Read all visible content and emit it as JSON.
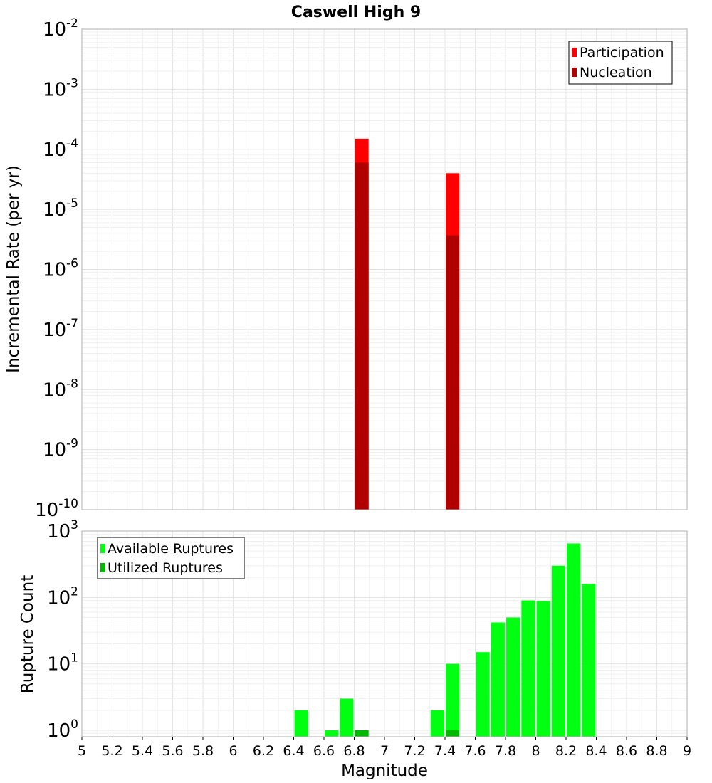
{
  "chart_data": [
    {
      "type": "bar",
      "title": "Caswell High 9",
      "xlabel": "",
      "ylabel": "Incremental Rate (per yr)",
      "y_scale": "log",
      "ylim": [
        1e-10,
        0.01
      ],
      "y_tick_exponents": [
        "-10",
        "-9",
        "-8",
        "-7",
        "-6",
        "-5",
        "-4",
        "-3",
        "-2"
      ],
      "y_tick_base": "10",
      "xlim": [
        5,
        9
      ],
      "bar_width": 0.09,
      "grid": true,
      "legend_position": "top-right",
      "series": [
        {
          "name": "Participation",
          "color": "#ff0000",
          "points": [
            {
              "x": 6.85,
              "y": 0.00015
            },
            {
              "x": 7.45,
              "y": 4e-05
            }
          ]
        },
        {
          "name": "Nucleation",
          "color": "#b00000",
          "points": [
            {
              "x": 6.85,
              "y": 6e-05
            },
            {
              "x": 7.45,
              "y": 3.7e-06
            }
          ]
        }
      ]
    },
    {
      "type": "bar",
      "title": "",
      "xlabel": "Magnitude",
      "ylabel": "Rupture Count",
      "y_scale": "log",
      "ylim": [
        0.8,
        1000
      ],
      "y_tick_exponents": [
        "0",
        "1",
        "2",
        "3"
      ],
      "y_tick_base": "10",
      "xlim": [
        5,
        9
      ],
      "x_ticks": [
        "5",
        "5.2",
        "5.4",
        "5.6",
        "5.8",
        "6",
        "6.2",
        "6.4",
        "6.6",
        "6.8",
        "7",
        "7.2",
        "7.4",
        "7.6",
        "7.8",
        "8",
        "8.2",
        "8.4",
        "8.6",
        "8.8",
        "9"
      ],
      "bar_width": 0.09,
      "grid": true,
      "legend_position": "top-left",
      "series": [
        {
          "name": "Available Ruptures",
          "color": "#00ff10",
          "points": [
            {
              "x": 6.45,
              "y": 2
            },
            {
              "x": 6.65,
              "y": 1
            },
            {
              "x": 6.75,
              "y": 3
            },
            {
              "x": 7.35,
              "y": 2
            },
            {
              "x": 7.45,
              "y": 10
            },
            {
              "x": 7.65,
              "y": 15
            },
            {
              "x": 7.75,
              "y": 42
            },
            {
              "x": 7.85,
              "y": 50
            },
            {
              "x": 7.95,
              "y": 90
            },
            {
              "x": 8.05,
              "y": 88
            },
            {
              "x": 8.15,
              "y": 300
            },
            {
              "x": 8.25,
              "y": 650
            },
            {
              "x": 8.35,
              "y": 160
            }
          ]
        },
        {
          "name": "Utilized Ruptures",
          "color": "#00b800",
          "points": [
            {
              "x": 6.85,
              "y": 1
            },
            {
              "x": 7.45,
              "y": 1
            }
          ]
        }
      ]
    }
  ]
}
